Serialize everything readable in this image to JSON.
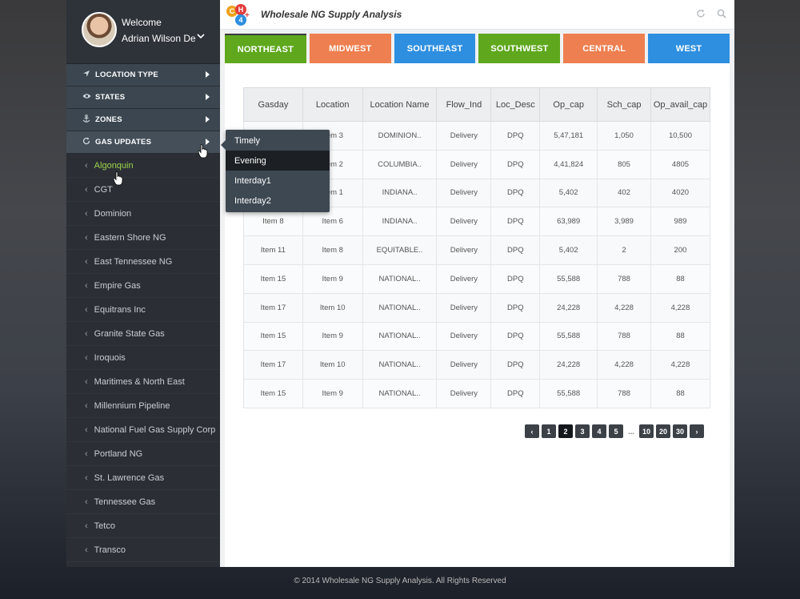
{
  "profile": {
    "welcome": "Welcome",
    "name": "Adrian Wilson De",
    "caret_icon": "chevron-down-icon"
  },
  "sidebar": {
    "categories": [
      {
        "label": "LOCATION TYPE",
        "icon": "navigation-arrow-icon"
      },
      {
        "label": "STATES",
        "icon": "eye-icon"
      },
      {
        "label": "ZONES",
        "icon": "anchor-icon"
      },
      {
        "label": "GAS UPDATES",
        "icon": "refresh-icon"
      }
    ],
    "pipelines": [
      "Algonquin",
      "CGT",
      "Dominion",
      "Eastern Shore NG",
      "East Tennessee NG",
      "Empire Gas",
      "Equitrans Inc",
      "Granite State Gas",
      "Iroquois",
      "Maritimes & North East",
      "Millennium Pipeline",
      "National Fuel Gas Supply Corp",
      "Portland NG",
      "St. Lawrence Gas",
      "Tennessee Gas",
      "Tetco",
      "Transco"
    ],
    "active_pipeline": "Algonquin",
    "active_color": "#9bd44c"
  },
  "header": {
    "logo_letters": [
      "C",
      "H",
      "4",
      "+"
    ],
    "title": "Wholesale NG Supply Analysis",
    "refresh_icon": "refresh-icon",
    "search_icon": "search-icon"
  },
  "tabs": [
    {
      "label": "NORTHEAST",
      "color": "#5fa81e"
    },
    {
      "label": "MIDWEST",
      "color": "#ee7f50"
    },
    {
      "label": "SOUTHEAST",
      "color": "#2e8fe0"
    },
    {
      "label": "SOUTHWEST",
      "color": "#5fa81e"
    },
    {
      "label": "CENTRAL",
      "color": "#ee7f50"
    },
    {
      "label": "WEST",
      "color": "#2e8fe0"
    }
  ],
  "flyout": {
    "items": [
      "Timely",
      "Evening",
      "Interday1",
      "Interday2"
    ],
    "active": "Evening"
  },
  "table": {
    "headers": [
      "Gasday",
      "Location",
      "Location Name",
      "Flow_Ind",
      "Loc_Desc",
      "Op_cap",
      "Sch_cap",
      "Op_avail_cap"
    ],
    "rows": [
      [
        "",
        "Item 3",
        "DOMINION..",
        "Delivery",
        "DPQ",
        "5,47,181",
        "1,050",
        "10,500"
      ],
      [
        "",
        "Item 2",
        "COLUMBIA..",
        "Delivery",
        "DPQ",
        "4,41,824",
        "805",
        "4805"
      ],
      [
        "",
        "Item 1",
        "INDIANA..",
        "Delivery",
        "DPQ",
        "5,402",
        "402",
        "4020"
      ],
      [
        "Item 8",
        "Item 6",
        "INDIANA..",
        "Delivery",
        "DPQ",
        "63,989",
        "3,989",
        "989"
      ],
      [
        "Item 11",
        "Item 8",
        "EQUITABLE..",
        "Delivery",
        "DPQ",
        "5,402",
        "2",
        "200"
      ],
      [
        "Item 15",
        "Item 9",
        "NATIONAL..",
        "Delivery",
        "DPQ",
        "55,588",
        "788",
        "88"
      ],
      [
        "Item 17",
        "Item 10",
        "NATIONAL..",
        "Delivery",
        "DPQ",
        "24,228",
        "4,228",
        "4,228"
      ],
      [
        "Item 15",
        "Item 9",
        "NATIONAL..",
        "Delivery",
        "DPQ",
        "55,588",
        "788",
        "88"
      ],
      [
        "Item 17",
        "Item 10",
        "NATIONAL..",
        "Delivery",
        "DPQ",
        "24,228",
        "4,228",
        "4,228"
      ],
      [
        "Item 15",
        "Item 9",
        "NATIONAL..",
        "Delivery",
        "DPQ",
        "55,588",
        "788",
        "88"
      ]
    ]
  },
  "pagination": {
    "prev": "‹",
    "pages": [
      "1",
      "2",
      "3",
      "4",
      "5",
      "...",
      "10",
      "20",
      "30"
    ],
    "current": "2",
    "next": "›"
  },
  "footer": "©  2014 Wholesale NG Supply Analysis. All Rights Reserved"
}
